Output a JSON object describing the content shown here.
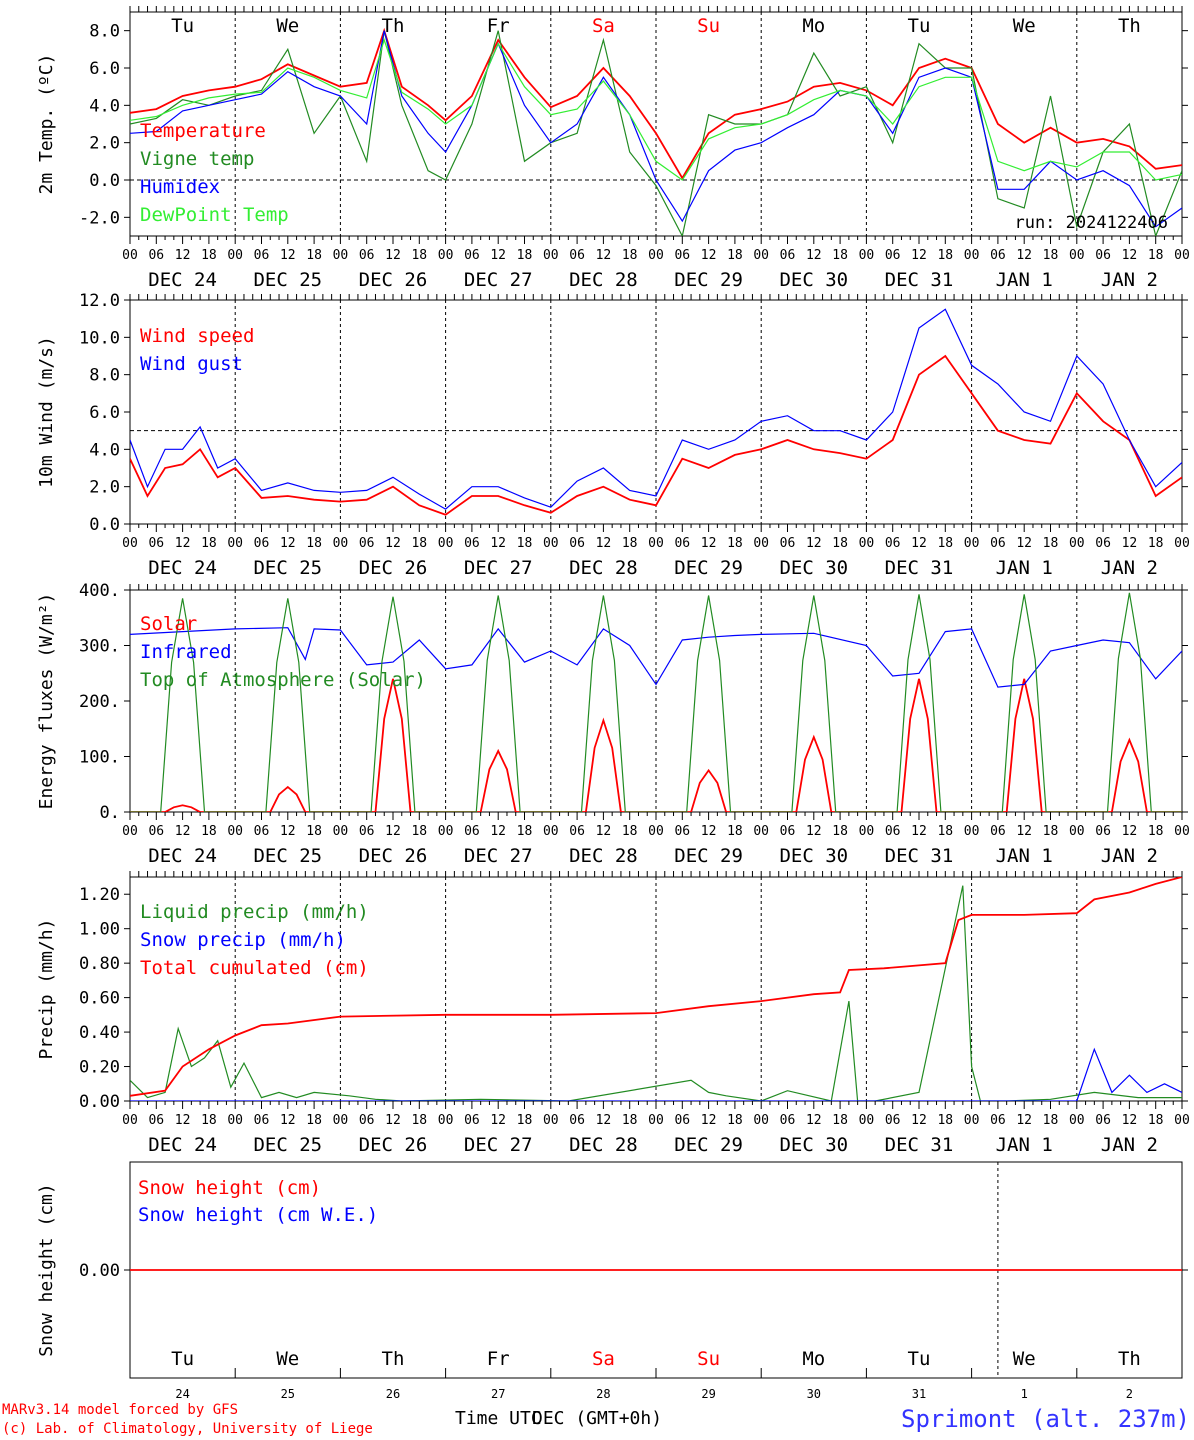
{
  "x_hour_labels": [
    "00",
    "06",
    "12",
    "18"
  ],
  "date_labels": [
    "DEC 24",
    "DEC 25",
    "DEC 26",
    "DEC 27",
    "DEC 28",
    "DEC 29",
    "DEC 30",
    "DEC 31",
    "JAN  1",
    "JAN  2"
  ],
  "last_hour_label": "00",
  "weekdays": [
    {
      "label": "Tu",
      "color": "#000000"
    },
    {
      "label": "We",
      "color": "#000000"
    },
    {
      "label": "Th",
      "color": "#000000"
    },
    {
      "label": "Fr",
      "color": "#000000"
    },
    {
      "label": "Sa",
      "color": "#ff0000"
    },
    {
      "label": "Su",
      "color": "#ff0000"
    },
    {
      "label": "Mo",
      "color": "#000000"
    },
    {
      "label": "Tu",
      "color": "#000000"
    },
    {
      "label": "We",
      "color": "#000000"
    },
    {
      "label": "Th",
      "color": "#000000"
    }
  ],
  "day_numbers": [
    "24",
    "25",
    "26",
    "27",
    "28",
    "29",
    "30",
    "31",
    "1",
    "2"
  ],
  "run_label": "run: 2024122406",
  "footer": {
    "model_line1": "MARv3.14 model forced by GFS",
    "model_line2": "(c) Lab. of Climatology, University of Liege",
    "time_label": "Time UTC",
    "time_label_overlap": "DEC (GMT+0h)",
    "station": "Sprimont (alt. 237m)"
  },
  "colors": {
    "red": "#ff0000",
    "green": "#228b22",
    "blue": "#0000ff",
    "lightgreen": "#33ee33"
  },
  "chart_data": [
    {
      "type": "line",
      "ylabel": "2m Temp. (ºC)",
      "ylim": [
        -3.0,
        9.0
      ],
      "yticks": [
        8.0,
        6.0,
        4.0,
        2.0,
        0.0,
        -2.0
      ],
      "ytick_labels": [
        "8.0",
        "6.0",
        "4.0",
        "2.0",
        "0.0",
        "-2.0"
      ],
      "x_unit": "hours since DEC 24 00 UTC",
      "xlim": [
        0,
        240
      ],
      "ref_line": 0.0,
      "show_weekdays": true,
      "series": [
        {
          "name": "Temperature",
          "color": "#ff0000",
          "x": [
            0,
            6,
            12,
            18,
            24,
            30,
            36,
            42,
            48,
            54,
            58,
            62,
            68,
            72,
            78,
            84,
            90,
            96,
            102,
            108,
            114,
            120,
            126,
            132,
            138,
            144,
            150,
            156,
            162,
            168,
            174,
            180,
            186,
            192,
            198,
            204,
            210,
            216,
            222,
            228,
            234,
            240
          ],
          "y": [
            3.6,
            3.8,
            4.5,
            4.8,
            5.0,
            5.4,
            6.2,
            5.6,
            5.0,
            5.2,
            8.0,
            5.0,
            4.0,
            3.2,
            4.5,
            7.5,
            5.5,
            3.9,
            4.5,
            6.0,
            4.5,
            2.5,
            0.1,
            2.5,
            3.5,
            3.8,
            4.2,
            5.0,
            5.2,
            4.8,
            4.0,
            6.0,
            6.5,
            6.0,
            3.0,
            2.0,
            2.8,
            2.0,
            2.2,
            1.8,
            0.6,
            0.8
          ]
        },
        {
          "name": "Vigne temp",
          "color": "#228b22",
          "x": [
            0,
            6,
            12,
            18,
            24,
            30,
            36,
            42,
            48,
            54,
            58,
            62,
            68,
            72,
            78,
            84,
            90,
            96,
            102,
            108,
            114,
            120,
            126,
            132,
            138,
            144,
            150,
            156,
            162,
            168,
            174,
            180,
            186,
            192,
            198,
            204,
            210,
            216,
            222,
            228,
            234,
            240
          ],
          "y": [
            3.0,
            3.3,
            4.3,
            4.0,
            4.5,
            4.8,
            7.0,
            2.5,
            4.5,
            1.0,
            8.0,
            4.0,
            0.5,
            0.0,
            3.0,
            8.0,
            1.0,
            2.0,
            2.5,
            7.5,
            1.5,
            -0.3,
            -3.0,
            3.5,
            3.0,
            3.0,
            3.5,
            6.8,
            4.5,
            5.0,
            2.0,
            7.3,
            6.0,
            6.0,
            -1.0,
            -1.5,
            4.5,
            -2.5,
            1.5,
            3.0,
            -3.0,
            0.5
          ]
        },
        {
          "name": "Humidex",
          "color": "#0000ff",
          "x": [
            0,
            6,
            12,
            18,
            24,
            30,
            36,
            42,
            48,
            54,
            58,
            62,
            68,
            72,
            78,
            84,
            90,
            96,
            102,
            108,
            114,
            120,
            126,
            132,
            138,
            144,
            150,
            156,
            162,
            168,
            174,
            180,
            186,
            192,
            198,
            204,
            210,
            216,
            222,
            228,
            234,
            240
          ],
          "y": [
            2.5,
            2.6,
            3.7,
            4.0,
            4.3,
            4.6,
            5.8,
            5.0,
            4.5,
            3.0,
            8.0,
            4.5,
            2.5,
            1.5,
            4.0,
            7.3,
            4.0,
            2.0,
            3.0,
            5.5,
            3.5,
            0.0,
            -2.2,
            0.5,
            1.6,
            2.0,
            2.8,
            3.5,
            4.8,
            4.5,
            2.5,
            5.5,
            6.0,
            5.5,
            -0.5,
            -0.5,
            1.0,
            0.0,
            0.5,
            -0.3,
            -2.5,
            -1.5
          ]
        },
        {
          "name": "DewPoint Temp",
          "color": "#33ee33",
          "x": [
            0,
            6,
            12,
            18,
            24,
            30,
            36,
            42,
            48,
            54,
            58,
            62,
            68,
            72,
            78,
            84,
            90,
            96,
            102,
            108,
            114,
            120,
            126,
            132,
            138,
            144,
            150,
            156,
            162,
            168,
            174,
            180,
            186,
            192,
            198,
            204,
            210,
            216,
            222,
            228,
            234,
            240
          ],
          "y": [
            3.2,
            3.4,
            4.0,
            4.4,
            4.6,
            4.7,
            6.0,
            5.5,
            4.8,
            4.4,
            7.5,
            4.7,
            3.8,
            3.0,
            4.0,
            7.3,
            5.0,
            3.5,
            3.8,
            5.3,
            3.5,
            1.0,
            0.0,
            2.2,
            2.8,
            3.0,
            3.5,
            4.3,
            4.8,
            4.5,
            3.0,
            5.0,
            5.5,
            5.5,
            1.0,
            0.5,
            1.0,
            0.7,
            1.5,
            1.5,
            0.0,
            0.3
          ]
        }
      ]
    },
    {
      "type": "line",
      "ylabel": "10m Wind (m/s)",
      "ylim": [
        0.0,
        12.0
      ],
      "yticks": [
        12.0,
        10.0,
        8.0,
        6.0,
        4.0,
        2.0,
        0.0
      ],
      "ytick_labels": [
        "12.0",
        "10.0",
        "8.0",
        "6.0",
        "4.0",
        "2.0",
        "0.0"
      ],
      "x_unit": "hours since DEC 24 00 UTC",
      "xlim": [
        0,
        240
      ],
      "ref_line": 5.0,
      "series": [
        {
          "name": "Wind speed",
          "color": "#ff0000",
          "x": [
            0,
            4,
            8,
            12,
            16,
            20,
            24,
            30,
            36,
            42,
            48,
            54,
            60,
            66,
            72,
            78,
            84,
            90,
            96,
            102,
            108,
            114,
            120,
            126,
            132,
            138,
            144,
            150,
            156,
            162,
            168,
            174,
            180,
            186,
            192,
            198,
            204,
            210,
            216,
            222,
            228,
            234,
            240
          ],
          "y": [
            3.5,
            1.5,
            3.0,
            3.2,
            4.0,
            2.5,
            3.0,
            1.4,
            1.5,
            1.3,
            1.2,
            1.3,
            2.0,
            1.0,
            0.5,
            1.5,
            1.5,
            1.0,
            0.6,
            1.5,
            2.0,
            1.3,
            1.0,
            3.5,
            3.0,
            3.7,
            4.0,
            4.5,
            4.0,
            3.8,
            3.5,
            4.5,
            8.0,
            9.0,
            7.0,
            5.0,
            4.5,
            4.3,
            7.0,
            5.5,
            4.5,
            1.5,
            2.5
          ]
        },
        {
          "name": "Wind gust",
          "color": "#0000ff",
          "x": [
            0,
            4,
            8,
            12,
            16,
            20,
            24,
            30,
            36,
            42,
            48,
            54,
            60,
            66,
            72,
            78,
            84,
            90,
            96,
            102,
            108,
            114,
            120,
            126,
            132,
            138,
            144,
            150,
            156,
            162,
            168,
            174,
            180,
            186,
            192,
            198,
            204,
            210,
            216,
            222,
            228,
            234,
            240
          ],
          "y": [
            4.5,
            2.0,
            4.0,
            4.0,
            5.2,
            3.0,
            3.5,
            1.8,
            2.2,
            1.8,
            1.7,
            1.8,
            2.5,
            1.6,
            0.8,
            2.0,
            2.0,
            1.4,
            0.9,
            2.3,
            3.0,
            1.8,
            1.5,
            4.5,
            4.0,
            4.5,
            5.5,
            5.8,
            5.0,
            5.0,
            4.5,
            6.0,
            10.5,
            11.5,
            8.5,
            7.5,
            6.0,
            5.5,
            9.0,
            7.5,
            4.5,
            2.0,
            3.3
          ]
        }
      ]
    },
    {
      "type": "line",
      "ylabel": "Energy fluxes (W/m²)",
      "ylim": [
        0,
        400
      ],
      "yticks": [
        400,
        300,
        200,
        100,
        0
      ],
      "ytick_labels": [
        "400.",
        "300.",
        "200.",
        "100.",
        "0."
      ],
      "x_unit": "hours since DEC 24 00 UTC",
      "xlim": [
        0,
        240
      ],
      "series": [
        {
          "name": "Solar",
          "color": "#ff0000",
          "peaks": [
            {
              "t": 12,
              "v": 12
            },
            {
              "t": 36,
              "v": 45
            },
            {
              "t": 60,
              "v": 240
            },
            {
              "t": 84,
              "v": 110
            },
            {
              "t": 108,
              "v": 165
            },
            {
              "t": 132,
              "v": 75
            },
            {
              "t": 156,
              "v": 135
            },
            {
              "t": 180,
              "v": 240
            },
            {
              "t": 204,
              "v": 240
            },
            {
              "t": 228,
              "v": 130
            }
          ]
        },
        {
          "name": "Infrared",
          "color": "#0000ff",
          "x": [
            0,
            12,
            24,
            36,
            40,
            42,
            48,
            54,
            60,
            66,
            72,
            78,
            84,
            90,
            96,
            102,
            108,
            114,
            120,
            126,
            132,
            138,
            144,
            156,
            168,
            174,
            180,
            186,
            192,
            198,
            204,
            210,
            216,
            222,
            228,
            234,
            240
          ],
          "y": [
            320,
            325,
            330,
            332,
            275,
            330,
            328,
            265,
            270,
            310,
            258,
            265,
            330,
            270,
            290,
            265,
            330,
            300,
            230,
            310,
            315,
            318,
            320,
            322,
            300,
            245,
            250,
            325,
            330,
            225,
            230,
            290,
            300,
            310,
            305,
            240,
            290
          ]
        },
        {
          "name": "Top of Atmosphere (Solar)",
          "color": "#228b22",
          "peaks": [
            {
              "t": 12,
              "v": 385
            },
            {
              "t": 36,
              "v": 385
            },
            {
              "t": 60,
              "v": 388
            },
            {
              "t": 84,
              "v": 390
            },
            {
              "t": 108,
              "v": 390
            },
            {
              "t": 132,
              "v": 390
            },
            {
              "t": 156,
              "v": 390
            },
            {
              "t": 180,
              "v": 392
            },
            {
              "t": 204,
              "v": 392
            },
            {
              "t": 228,
              "v": 395
            }
          ]
        }
      ]
    },
    {
      "type": "line",
      "ylabel": "Precip (mm/h)",
      "ylim": [
        0.0,
        1.3
      ],
      "yticks": [
        1.2,
        1.0,
        0.8,
        0.6,
        0.4,
        0.2,
        0.0
      ],
      "ytick_labels": [
        "1.20",
        "1.00",
        "0.80",
        "0.60",
        "0.40",
        "0.20",
        "0.00"
      ],
      "x_unit": "hours since DEC 24 00 UTC",
      "xlim": [
        0,
        240
      ],
      "series": [
        {
          "name": "Liquid precip (mm/h)",
          "color": "#228b22",
          "x": [
            0,
            4,
            8,
            11,
            14,
            17,
            20,
            23,
            26,
            30,
            34,
            38,
            42,
            50,
            56,
            62,
            80,
            100,
            128,
            132,
            136,
            144,
            150,
            160,
            164,
            166,
            170,
            180,
            190,
            192,
            194,
            196,
            200,
            210,
            220,
            230,
            240
          ],
          "y": [
            0.12,
            0.02,
            0.05,
            0.42,
            0.2,
            0.25,
            0.35,
            0.08,
            0.22,
            0.02,
            0.05,
            0.02,
            0.05,
            0.03,
            0.01,
            0.0,
            0.01,
            0.0,
            0.12,
            0.05,
            0.03,
            0.0,
            0.06,
            0.0,
            0.58,
            0.0,
            0.0,
            0.05,
            1.25,
            0.2,
            0.0,
            0.0,
            0.0,
            0.01,
            0.05,
            0.02,
            0.02
          ]
        },
        {
          "name": "Snow precip (mm/h)",
          "color": "#0000ff",
          "x": [
            0,
            20,
            40,
            60,
            80,
            100,
            120,
            140,
            160,
            180,
            194,
            200,
            210,
            216,
            220,
            224,
            228,
            232,
            236,
            240
          ],
          "y": [
            0.0,
            0.0,
            0.0,
            0.0,
            0.0,
            0.0,
            0.0,
            0.0,
            0.0,
            0.0,
            0.0,
            0.0,
            0.0,
            0.0,
            0.3,
            0.05,
            0.15,
            0.05,
            0.1,
            0.05
          ]
        },
        {
          "name": "Total cumulated (cm)",
          "color": "#ff0000",
          "x": [
            0,
            8,
            12,
            18,
            24,
            30,
            36,
            48,
            72,
            96,
            120,
            132,
            144,
            156,
            162,
            164,
            172,
            186,
            189,
            192,
            204,
            216,
            220,
            228,
            234,
            240
          ],
          "y": [
            0.03,
            0.06,
            0.2,
            0.3,
            0.38,
            0.44,
            0.45,
            0.49,
            0.5,
            0.5,
            0.51,
            0.55,
            0.58,
            0.62,
            0.63,
            0.76,
            0.77,
            0.8,
            1.05,
            1.08,
            1.08,
            1.09,
            1.17,
            1.21,
            1.26,
            1.3
          ]
        }
      ]
    },
    {
      "type": "line",
      "ylabel": "Snow height (cm)",
      "ylim": [
        -1.0,
        1.0
      ],
      "yticks": [
        0.0
      ],
      "ytick_labels": [
        "0.00"
      ],
      "x_unit": "hours since DEC 24 00 UTC",
      "xlim": [
        0,
        240
      ],
      "show_weekdays": true,
      "series": [
        {
          "name": "Snow height (cm)",
          "color": "#ff0000",
          "x": [
            0,
            240
          ],
          "y": [
            0.0,
            0.0
          ]
        },
        {
          "name": "Snow height (cm W.E.)",
          "color": "#0000ff",
          "x": [],
          "y": []
        }
      ]
    }
  ]
}
